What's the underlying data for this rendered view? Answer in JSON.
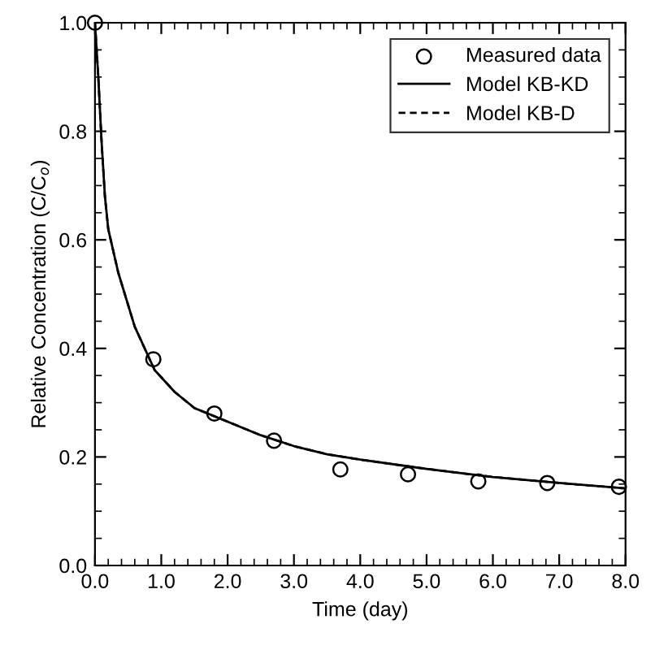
{
  "chart_data": {
    "type": "line",
    "xlabel": "Time (day)",
    "ylabel": "Relative Concentration (C/C$_{o}$)",
    "xlim": [
      0,
      8
    ],
    "ylim": [
      0,
      1
    ],
    "xticks": [
      {
        "value": 0,
        "label": "0.0"
      },
      {
        "value": 1,
        "label": "1.0"
      },
      {
        "value": 2,
        "label": "2.0"
      },
      {
        "value": 3,
        "label": "3.0"
      },
      {
        "value": 4,
        "label": "4.0"
      },
      {
        "value": 5,
        "label": "5.0"
      },
      {
        "value": 6,
        "label": "6.0"
      },
      {
        "value": 7,
        "label": "7.0"
      },
      {
        "value": 8,
        "label": "8.0"
      }
    ],
    "yticks": [
      {
        "value": 0,
        "label": "0.0"
      },
      0.2,
      0.4,
      0.6,
      0.8,
      {
        "value": 1,
        "label": "1.0"
      }
    ],
    "legend": "top right",
    "grid": false,
    "series": [
      {
        "name": "Measured data",
        "type": "scatter",
        "marker": "circle",
        "color": "#000000",
        "x": [
          0,
          0.88,
          1.8,
          2.7,
          3.7,
          4.72,
          5.78,
          6.82,
          7.9
        ],
        "values": [
          1.0,
          0.38,
          0.28,
          0.23,
          0.177,
          0.168,
          0.155,
          0.152,
          0.145
        ]
      },
      {
        "name": "Model KB-KD",
        "line_style": "solid",
        "color": "#000000",
        "x": [
          0,
          0.05,
          0.1,
          0.15,
          0.2,
          0.35,
          0.6,
          0.9,
          1.2,
          1.5,
          2.0,
          2.5,
          3.0,
          3.5,
          4.0,
          5.0,
          6.0,
          7.0,
          8.0
        ],
        "values": [
          1.0,
          0.9,
          0.78,
          0.68,
          0.62,
          0.54,
          0.44,
          0.36,
          0.32,
          0.29,
          0.265,
          0.24,
          0.22,
          0.205,
          0.195,
          0.178,
          0.163,
          0.152,
          0.142
        ]
      },
      {
        "name": "Model KB-D",
        "line_style": "dashed",
        "color": "#000000",
        "x": [
          0,
          0.05,
          0.1,
          0.15,
          0.2,
          0.35,
          0.6,
          0.9,
          1.2,
          1.5,
          2.0,
          2.5,
          3.0,
          3.5,
          4.0,
          5.0,
          6.0,
          7.0,
          8.0
        ],
        "values": [
          1.0,
          0.9,
          0.78,
          0.68,
          0.62,
          0.54,
          0.44,
          0.36,
          0.32,
          0.29,
          0.265,
          0.24,
          0.22,
          0.205,
          0.195,
          0.178,
          0.163,
          0.152,
          0.142
        ]
      }
    ]
  }
}
